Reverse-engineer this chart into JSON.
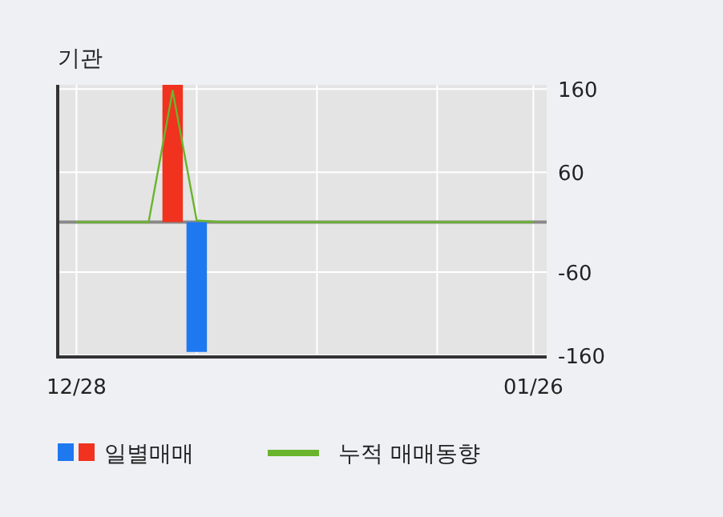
{
  "chart_data": {
    "type": "bar",
    "title": "기관",
    "categories": [
      "12/28",
      null,
      null,
      null,
      null,
      null,
      null,
      null,
      null,
      null,
      null,
      null,
      null,
      null,
      null,
      null,
      null,
      null,
      null,
      "01/26"
    ],
    "series": [
      {
        "name": "일별매매",
        "colors": [
          "#1e78f0",
          "#1e78f0",
          "#1e78f0",
          "#1e78f0",
          "#f0321e",
          "#1e78f0",
          "#1e78f0",
          "#1e78f0",
          "#1e78f0",
          "#1e78f0",
          "#1e78f0",
          "#1e78f0",
          "#1e78f0",
          "#1e78f0",
          "#1e78f0",
          "#1e78f0",
          "#1e78f0",
          "#1e78f0",
          "#1e78f0",
          "#1e78f0"
        ],
        "values": [
          null,
          null,
          null,
          null,
          165,
          -156,
          null,
          null,
          null,
          null,
          null,
          null,
          null,
          null,
          null,
          null,
          null,
          null,
          null,
          null
        ]
      },
      {
        "name": "누적 매매동향",
        "type": "line",
        "color": "#6ab42d",
        "values": [
          0,
          0,
          0,
          0,
          158,
          2,
          0,
          0,
          0,
          0,
          0,
          0,
          0,
          0,
          0,
          0,
          0,
          0,
          0,
          0
        ]
      }
    ],
    "ylim": [
      -162,
      165
    ],
    "yticks": [
      -160,
      -60,
      60,
      160
    ],
    "grid": true,
    "legend": "bottom",
    "ref_lines": [
      {
        "axis": "y",
        "value": 0,
        "color": "#888888"
      }
    ]
  }
}
